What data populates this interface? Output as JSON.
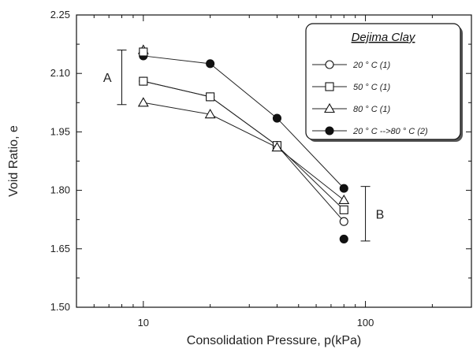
{
  "chart_data": {
    "type": "scatter",
    "title": "",
    "xlabel": "Consolidation Pressure, p(kPa)",
    "ylabel": "Void Ratio, e",
    "x_scale": "log",
    "xlim": [
      5,
      300
    ],
    "ylim": [
      1.5,
      2.25
    ],
    "x_ticks": [
      10,
      100
    ],
    "y_ticks": [
      1.5,
      1.65,
      1.8,
      1.95,
      2.1,
      2.25
    ],
    "y_tick_labels": [
      "1.50",
      "1.65",
      "1.80",
      "1.95",
      "2.10",
      "2.25"
    ],
    "grid": false,
    "legend": {
      "title": "Dejima Clay",
      "placement": "top-right"
    },
    "series": [
      {
        "name": "20 ° C (1)",
        "marker": "circle-open",
        "x": [
          10,
          20,
          40,
          80
        ],
        "y": [
          2.08,
          2.04,
          1.915,
          1.72
        ]
      },
      {
        "name": "50 ° C (1)",
        "marker": "square-open",
        "x": [
          10,
          20,
          40,
          80
        ],
        "y": [
          2.08,
          2.04,
          1.915,
          1.75
        ]
      },
      {
        "name": "80 ° C (1)",
        "marker": "triangle-open",
        "x": [
          10,
          20,
          40,
          80
        ],
        "y": [
          2.025,
          1.995,
          1.91,
          1.775
        ]
      },
      {
        "name": "20 ° C -->80  ° C (2)",
        "marker": "circle-filled",
        "x": [
          10,
          20,
          40,
          80
        ],
        "y": [
          2.145,
          2.125,
          1.985,
          1.805
        ]
      }
    ],
    "extra_points": [
      {
        "marker": "triangle-open",
        "x": 10,
        "y": 2.16
      },
      {
        "marker": "square-open",
        "x": 10,
        "y": 2.155
      },
      {
        "marker": "circle-filled",
        "x": 80,
        "y": 1.675
      }
    ],
    "annotations": [
      {
        "label": "A",
        "x": 8,
        "y_range": [
          2.02,
          2.16
        ]
      },
      {
        "label": "B",
        "x": 100,
        "y_range": [
          1.67,
          1.81
        ]
      }
    ]
  }
}
